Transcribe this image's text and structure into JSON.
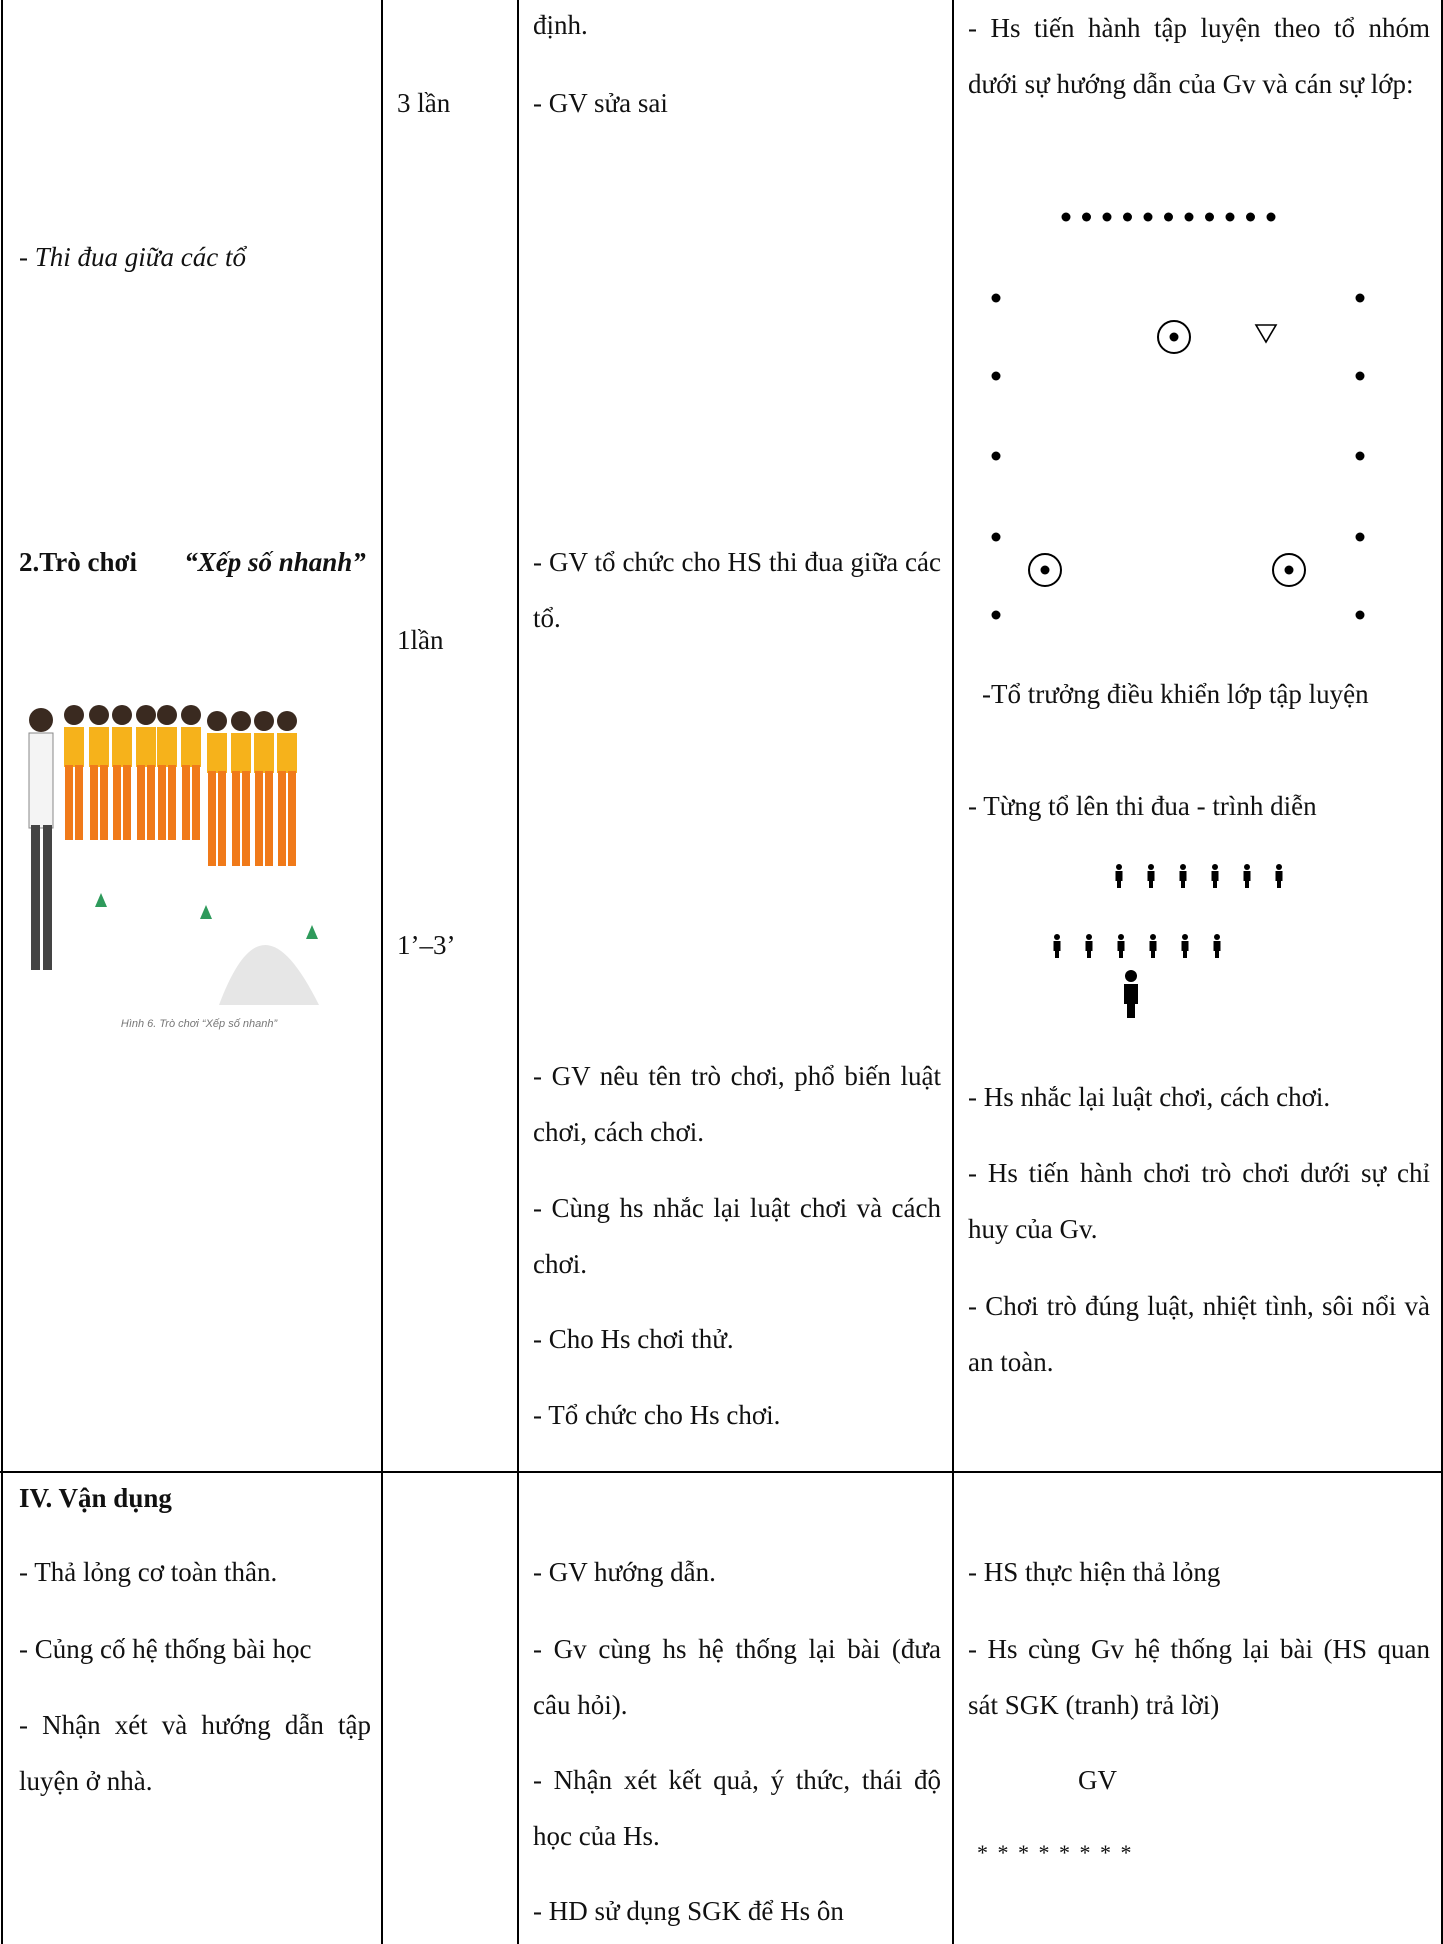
{
  "rows": [
    {
      "cells": [
        {
          "items": [
            "- Thi đua giữa các tổ",
            "2.Trò chơi",
            "“Xếp số nhanh”"
          ]
        },
        {
          "items": [
            "3 lần",
            "1lần",
            "1’–3’"
          ]
        },
        {
          "items": [
            "định.",
            "- GV sửa sai",
            "- GV tổ chức cho HS thi đua giữa các tổ.",
            "- GV nêu tên trò chơi, phổ biến luật chơi, cách chơi.",
            " - Cùng hs nhắc lại luật chơi và cách chơi.",
            "- Cho Hs chơi thử.",
            "- Tổ chức cho Hs chơi."
          ]
        },
        {
          "items": [
            "- Hs tiến hành tập luyện theo tổ nhóm dưới sự hướng dẫn của Gv và cán sự lớp:",
            "-Tổ trưởng điều khiển lớp tập luyện",
            "- Từng tổ  lên  thi đua - trình diễn",
            "- Hs nhắc lại luật chơi, cách chơi.",
            "- Hs tiến hành chơi trò chơi dưới sự chỉ huy của Gv.",
            "- Chơi trò đúng luật, nhiệt tình, sôi nổi và an toàn."
          ]
        }
      ]
    },
    {
      "cells": [
        {
          "items": [
            "IV. Vận dụng",
            "- Thả lỏng cơ toàn thân.",
            "- Củng cố hệ thống bài học",
            "- Nhận xét và hướng dẫn tập luyện ở nhà."
          ]
        },
        {
          "items": []
        },
        {
          "items": [
            "- GV hướng dẫn.",
            "- Gv cùng hs hệ thống lại bài (đưa câu hỏi).",
            "- Nhận xét kết quả, ý thức, thái độ học của Hs.",
            "- HD sử dụng SGK để Hs ôn"
          ]
        },
        {
          "items": [
            "- HS thực hiện thả lỏng",
            "- Hs cùng Gv hệ thống lại bài (HS quan sát SGK (tranh) trả lời)",
            "GV",
            "* * * * * * * *"
          ]
        }
      ]
    }
  ],
  "figure": {
    "caption": "Hình 6. Trò chơi “Xếp số nhanh”"
  }
}
